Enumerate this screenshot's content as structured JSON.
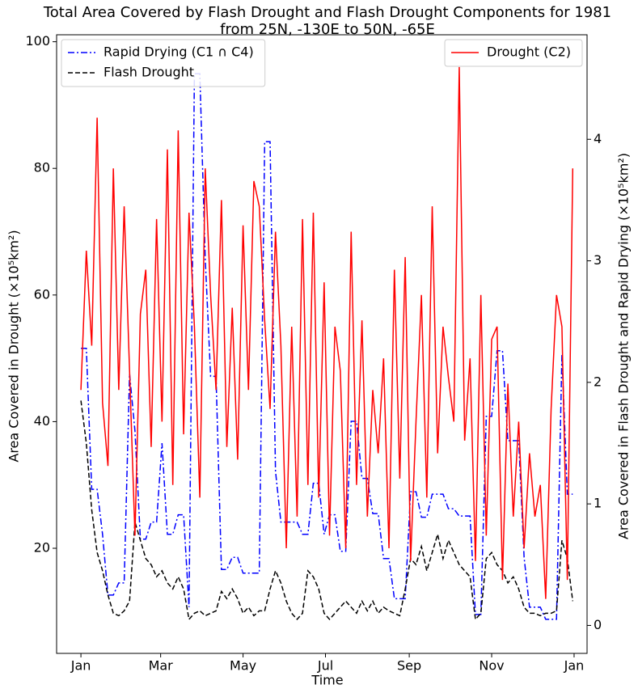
{
  "chart_data": {
    "type": "line",
    "title": "Total Area Covered by Flash Drought and Flash Drought Components for 1981",
    "subtitle": "from 25N, -130E to 50N, -65E",
    "x_label": "Time",
    "y_label": "Area Covered in Drought (×10⁵km²)",
    "y2_label": "Area Covered in Flash Drought and Rapid Drying (×10⁵km²)",
    "x": [
      1,
      5,
      9,
      13,
      17,
      21,
      25,
      29,
      33,
      37,
      41,
      45,
      49,
      53,
      57,
      61,
      65,
      69,
      73,
      77,
      81,
      85,
      89,
      93,
      97,
      101,
      105,
      109,
      113,
      117,
      121,
      125,
      129,
      133,
      137,
      141,
      145,
      149,
      153,
      157,
      161,
      165,
      169,
      173,
      177,
      181,
      185,
      189,
      193,
      197,
      201,
      205,
      209,
      213,
      217,
      221,
      225,
      229,
      233,
      237,
      241,
      245,
      249,
      253,
      257,
      261,
      265,
      269,
      273,
      277,
      281,
      285,
      289,
      293,
      297,
      301,
      305,
      309,
      313,
      317,
      321,
      325,
      329,
      333,
      337,
      341,
      345,
      349,
      353,
      357,
      361,
      365
    ],
    "xlim": [
      -17,
      375.6
    ],
    "xticks": [
      {
        "value": 1,
        "label": "Jan"
      },
      {
        "value": 60,
        "label": "Mar"
      },
      {
        "value": 121,
        "label": "May"
      },
      {
        "value": 182,
        "label": "Jul"
      },
      {
        "value": 244,
        "label": "Sep"
      },
      {
        "value": 305,
        "label": "Nov"
      },
      {
        "value": 366,
        "label": "Jan"
      }
    ],
    "ylim": [
      3.4,
      101.1
    ],
    "yticks": [
      20,
      40,
      60,
      80,
      100
    ],
    "y2lim": [
      -0.23,
      4.86
    ],
    "y2ticks": [
      0,
      1,
      2,
      3,
      4
    ],
    "legend_y": "upper right",
    "legend_y2": "upper left",
    "series": [
      {
        "name": "Rapid Drying (C1 ∩ C4)",
        "color": "#0000ff",
        "dash": "dashdot",
        "axis": "y2",
        "values": [
          2.28,
          2.28,
          1.12,
          1.12,
          0.75,
          0.25,
          0.25,
          0.35,
          0.35,
          2.07,
          1.6,
          0.71,
          0.71,
          0.85,
          0.85,
          1.5,
          0.75,
          0.75,
          0.91,
          0.91,
          0.15,
          4.54,
          4.54,
          3.02,
          2.05,
          2.05,
          0.46,
          0.46,
          0.56,
          0.56,
          0.43,
          0.43,
          0.43,
          0.43,
          3.98,
          3.98,
          1.27,
          0.85,
          0.85,
          0.85,
          0.85,
          0.75,
          0.75,
          1.17,
          1.17,
          0.75,
          0.91,
          0.91,
          0.61,
          0.61,
          1.68,
          1.68,
          1.21,
          1.21,
          0.92,
          0.92,
          0.55,
          0.55,
          0.22,
          0.22,
          0.22,
          1.1,
          1.1,
          0.89,
          0.89,
          1.08,
          1.08,
          1.08,
          0.96,
          0.96,
          0.9,
          0.9,
          0.9,
          0.09,
          0.09,
          1.72,
          1.72,
          2.26,
          2.26,
          1.52,
          1.52,
          1.52,
          0.56,
          0.15,
          0.15,
          0.15,
          0.05,
          0.05,
          0.05,
          2.23,
          1.08,
          1.08
        ]
      },
      {
        "name": "Flash Drought",
        "color": "#000000",
        "dash": "dashed",
        "axis": "y2",
        "values": [
          1.85,
          1.5,
          0.95,
          0.6,
          0.45,
          0.25,
          0.1,
          0.08,
          0.12,
          0.2,
          0.85,
          0.7,
          0.55,
          0.5,
          0.4,
          0.45,
          0.35,
          0.3,
          0.4,
          0.3,
          0.05,
          0.1,
          0.12,
          0.08,
          0.1,
          0.12,
          0.28,
          0.22,
          0.3,
          0.22,
          0.1,
          0.15,
          0.08,
          0.12,
          0.12,
          0.3,
          0.45,
          0.35,
          0.2,
          0.1,
          0.05,
          0.1,
          0.45,
          0.4,
          0.3,
          0.1,
          0.05,
          0.1,
          0.15,
          0.2,
          0.15,
          0.1,
          0.2,
          0.12,
          0.2,
          0.1,
          0.15,
          0.12,
          0.1,
          0.08,
          0.3,
          0.55,
          0.5,
          0.65,
          0.45,
          0.6,
          0.75,
          0.55,
          0.7,
          0.6,
          0.5,
          0.45,
          0.4,
          0.05,
          0.1,
          0.55,
          0.6,
          0.5,
          0.45,
          0.35,
          0.4,
          0.3,
          0.15,
          0.1,
          0.1,
          0.08,
          0.1,
          0.1,
          0.12,
          0.7,
          0.55,
          0.2
        ]
      },
      {
        "name": "Drought (C2)",
        "color": "#ff0000",
        "dash": "solid",
        "axis": "y",
        "values": [
          45,
          67,
          52,
          88,
          43,
          33,
          80,
          45,
          74,
          48,
          22,
          57,
          64,
          36,
          72,
          40,
          83,
          30,
          86,
          38,
          73,
          55,
          28,
          80,
          60,
          45,
          75,
          36,
          58,
          34,
          71,
          45,
          78,
          74,
          56,
          42,
          70,
          52,
          20,
          55,
          25,
          72,
          30,
          73,
          28,
          62,
          22,
          55,
          48,
          20,
          70,
          30,
          56,
          25,
          45,
          35,
          50,
          20,
          64,
          31,
          66,
          18,
          40,
          60,
          28,
          74,
          35,
          55,
          47,
          40,
          96,
          37,
          50,
          18,
          60,
          22,
          53,
          55,
          15,
          46,
          25,
          40,
          20,
          35,
          25,
          30,
          12,
          42,
          60,
          55,
          15,
          80
        ]
      }
    ]
  }
}
